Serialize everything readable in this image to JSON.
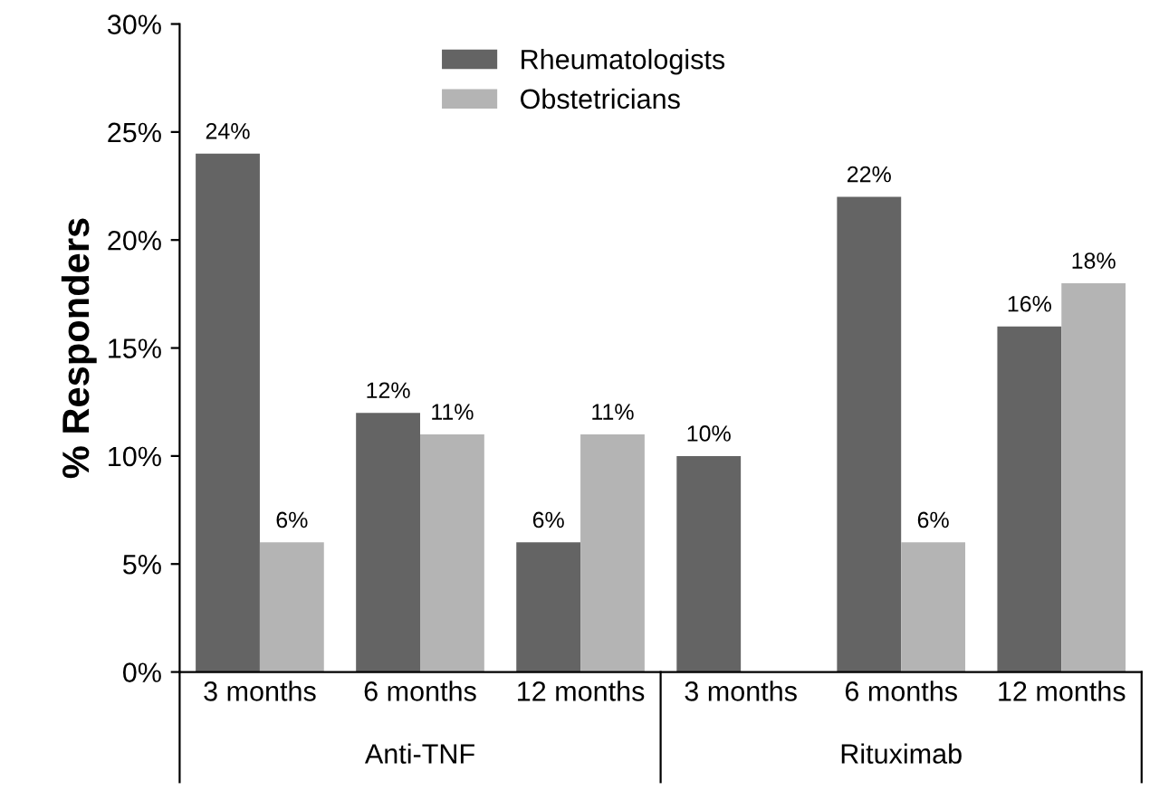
{
  "chart_data": {
    "type": "bar",
    "ylabel": "% Responders",
    "categories": [
      "3 months",
      "6 months",
      "12 months",
      "3 months",
      "6 months",
      "12 months"
    ],
    "series": [
      {
        "name": "Rheumatologists",
        "color": "#646464",
        "values": [
          24,
          12,
          6,
          10,
          22,
          16
        ],
        "value_labels": [
          "24%",
          "12%",
          "6%",
          "10%",
          "22%",
          "16%"
        ]
      },
      {
        "name": "Obstetricians",
        "color": "#b4b4b4",
        "values": [
          6,
          11,
          11,
          0,
          6,
          18
        ],
        "value_labels": [
          "6%",
          "11%",
          "11%",
          null,
          "6%",
          "18%"
        ]
      }
    ],
    "ylim": [
      0,
      30
    ],
    "yticks": [
      {
        "value": 0,
        "label": "0%"
      },
      {
        "value": 5,
        "label": "5%"
      },
      {
        "value": 10,
        "label": "10%"
      },
      {
        "value": 15,
        "label": "15%"
      },
      {
        "value": 20,
        "label": "20%"
      },
      {
        "value": 25,
        "label": "25%"
      },
      {
        "value": 30,
        "label": "30%"
      }
    ],
    "annotations": [
      "Anti-TNF",
      "Rituximab"
    ],
    "legend": "top",
    "grid": false
  }
}
